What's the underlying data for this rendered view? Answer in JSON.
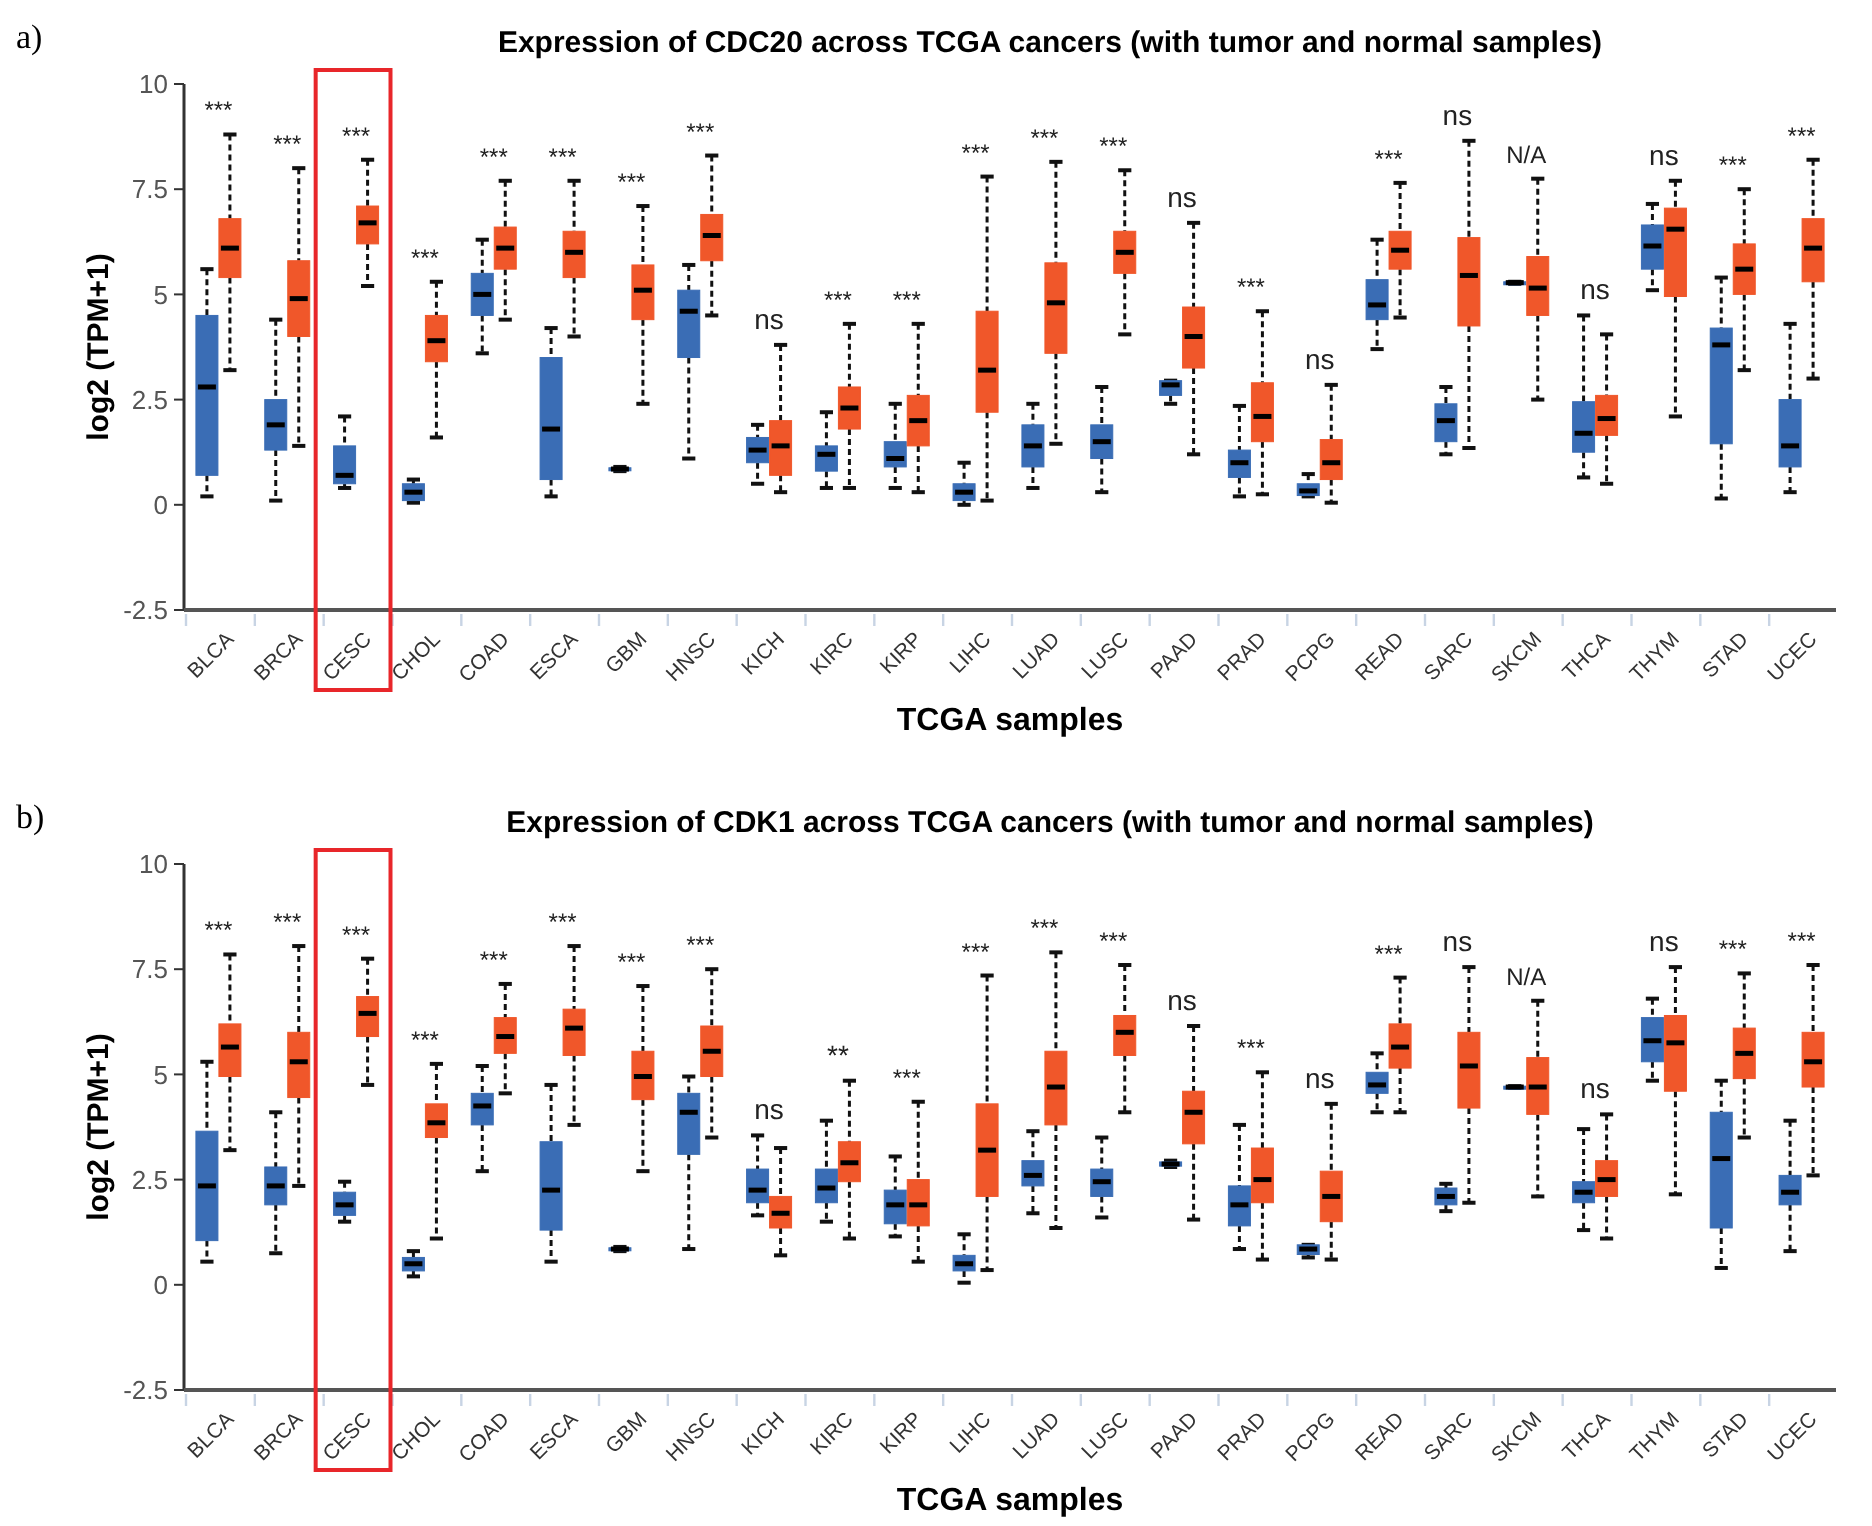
{
  "chart_data": [
    {
      "type": "box",
      "title": "Expression of CDC20 across TCGA cancers (with tumor and normal samples)",
      "xlabel": "TCGA samples",
      "ylabel": "log2 (TPM+1)",
      "ylim": [
        -2.5,
        10
      ],
      "yticks": [
        -2.5,
        0,
        2.5,
        5,
        7.5,
        10
      ],
      "categories": [
        "BLCA",
        "BRCA",
        "CESC",
        "CHOL",
        "COAD",
        "ESCA",
        "GBM",
        "HNSC",
        "KICH",
        "KIRC",
        "KIRP",
        "LIHC",
        "LUAD",
        "LUSC",
        "PAAD",
        "PRAD",
        "PCPG",
        "READ",
        "SARC",
        "SKCM",
        "THCA",
        "THYM",
        "STAD",
        "UCEC"
      ],
      "series": [
        {
          "color": "#3a6db5",
          "boxes": [
            {
              "low": 0.2,
              "q1": 0.7,
              "median": 2.8,
              "q3": 4.5,
              "high": 5.6
            },
            {
              "low": 0.1,
              "q1": 1.3,
              "median": 1.9,
              "q3": 2.5,
              "high": 4.4
            },
            {
              "low": 0.4,
              "q1": 0.5,
              "median": 0.7,
              "q3": 1.4,
              "high": 2.1
            },
            {
              "low": 0.05,
              "q1": 0.1,
              "median": 0.3,
              "q3": 0.5,
              "high": 0.6
            },
            {
              "low": 3.6,
              "q1": 4.5,
              "median": 5.0,
              "q3": 5.5,
              "high": 6.3
            },
            {
              "low": 0.2,
              "q1": 0.6,
              "median": 1.8,
              "q3": 3.5,
              "high": 4.2
            },
            {
              "low": 0.8,
              "q1": 0.82,
              "median": 0.85,
              "q3": 0.88,
              "high": 0.9
            },
            {
              "low": 1.1,
              "q1": 3.5,
              "median": 4.6,
              "q3": 5.1,
              "high": 5.7
            },
            {
              "low": 0.5,
              "q1": 1.0,
              "median": 1.3,
              "q3": 1.6,
              "high": 1.9
            },
            {
              "low": 0.4,
              "q1": 0.8,
              "median": 1.2,
              "q3": 1.4,
              "high": 2.2
            },
            {
              "low": 0.4,
              "q1": 0.9,
              "median": 1.1,
              "q3": 1.5,
              "high": 2.4
            },
            {
              "low": 0.0,
              "q1": 0.1,
              "median": 0.3,
              "q3": 0.5,
              "high": 1.0
            },
            {
              "low": 0.4,
              "q1": 0.9,
              "median": 1.4,
              "q3": 1.9,
              "high": 2.4
            },
            {
              "low": 0.3,
              "q1": 1.1,
              "median": 1.5,
              "q3": 1.9,
              "high": 2.8
            },
            {
              "low": 2.4,
              "q1": 2.6,
              "median": 2.85,
              "q3": 2.95,
              "high": 2.95
            },
            {
              "low": 0.2,
              "q1": 0.65,
              "median": 1.0,
              "q3": 1.3,
              "high": 2.35
            },
            {
              "low": 0.2,
              "q1": 0.22,
              "median": 0.33,
              "q3": 0.5,
              "high": 0.73
            },
            {
              "low": 3.7,
              "q1": 4.4,
              "median": 4.75,
              "q3": 5.35,
              "high": 6.3
            },
            {
              "low": 1.2,
              "q1": 1.5,
              "median": 2.0,
              "q3": 2.4,
              "high": 2.8
            },
            {
              "low": 5.25,
              "q1": 5.25,
              "median": 5.28,
              "q3": 5.3,
              "high": 5.3
            },
            {
              "low": 0.65,
              "q1": 1.25,
              "median": 1.7,
              "q3": 2.45,
              "high": 4.5
            },
            {
              "low": 5.1,
              "q1": 5.6,
              "median": 6.15,
              "q3": 6.65,
              "high": 7.15
            },
            {
              "low": 0.15,
              "q1": 1.45,
              "median": 3.8,
              "q3": 4.2,
              "high": 5.4
            },
            {
              "low": 0.3,
              "q1": 0.9,
              "median": 1.4,
              "q3": 2.5,
              "high": 4.3
            }
          ]
        },
        {
          "color": "#f0572a",
          "boxes": [
            {
              "low": 3.2,
              "q1": 5.4,
              "median": 6.1,
              "q3": 6.8,
              "high": 8.8
            },
            {
              "low": 1.4,
              "q1": 4.0,
              "median": 4.9,
              "q3": 5.8,
              "high": 8.0
            },
            {
              "low": 5.2,
              "q1": 6.2,
              "median": 6.7,
              "q3": 7.1,
              "high": 8.2
            },
            {
              "low": 1.6,
              "q1": 3.4,
              "median": 3.9,
              "q3": 4.5,
              "high": 5.3
            },
            {
              "low": 4.4,
              "q1": 5.6,
              "median": 6.1,
              "q3": 6.6,
              "high": 7.7
            },
            {
              "low": 4.0,
              "q1": 5.4,
              "median": 6.0,
              "q3": 6.5,
              "high": 7.7
            },
            {
              "low": 2.4,
              "q1": 4.4,
              "median": 5.1,
              "q3": 5.7,
              "high": 7.1
            },
            {
              "low": 4.5,
              "q1": 5.8,
              "median": 6.4,
              "q3": 6.9,
              "high": 8.3
            },
            {
              "low": 0.3,
              "q1": 0.7,
              "median": 1.4,
              "q3": 2.0,
              "high": 3.8
            },
            {
              "low": 0.4,
              "q1": 1.8,
              "median": 2.3,
              "q3": 2.8,
              "high": 4.3
            },
            {
              "low": 0.3,
              "q1": 1.4,
              "median": 2.0,
              "q3": 2.6,
              "high": 4.3
            },
            {
              "low": 0.1,
              "q1": 2.2,
              "median": 3.2,
              "q3": 4.6,
              "high": 7.8
            },
            {
              "low": 1.45,
              "q1": 3.6,
              "median": 4.8,
              "q3": 5.75,
              "high": 8.15
            },
            {
              "low": 4.05,
              "q1": 5.5,
              "median": 6.0,
              "q3": 6.5,
              "high": 7.95
            },
            {
              "low": 1.2,
              "q1": 3.25,
              "median": 4.0,
              "q3": 4.7,
              "high": 6.7
            },
            {
              "low": 0.25,
              "q1": 1.5,
              "median": 2.1,
              "q3": 2.9,
              "high": 4.6
            },
            {
              "low": 0.05,
              "q1": 0.6,
              "median": 1.0,
              "q3": 1.55,
              "high": 2.85
            },
            {
              "low": 4.45,
              "q1": 5.6,
              "median": 6.05,
              "q3": 6.5,
              "high": 7.65
            },
            {
              "low": 1.35,
              "q1": 4.25,
              "median": 5.45,
              "q3": 6.35,
              "high": 8.65
            },
            {
              "low": 2.5,
              "q1": 4.5,
              "median": 5.15,
              "q3": 5.9,
              "high": 7.75
            },
            {
              "low": 0.5,
              "q1": 1.65,
              "median": 2.05,
              "q3": 2.6,
              "high": 4.05
            },
            {
              "low": 2.1,
              "q1": 4.95,
              "median": 6.55,
              "q3": 7.05,
              "high": 7.7
            },
            {
              "low": 3.2,
              "q1": 5.0,
              "median": 5.6,
              "q3": 6.2,
              "high": 7.5
            },
            {
              "low": 3.0,
              "q1": 5.3,
              "median": 6.1,
              "q3": 6.8,
              "high": 8.2
            }
          ]
        }
      ],
      "annotations": [
        "a)",
        "***",
        "***",
        "***",
        "***",
        "***",
        "***",
        "***",
        "***",
        "ns",
        "***",
        "***",
        "***",
        "***",
        "***",
        "ns",
        "***",
        "ns",
        "***",
        "ns",
        "N/A",
        "ns",
        "ns",
        "***",
        "***"
      ]
    },
    {
      "type": "box",
      "title": "Expression of CDK1 across TCGA cancers (with tumor and normal samples)",
      "xlabel": "TCGA samples",
      "ylabel": "log2 (TPM+1)",
      "ylim": [
        -2.5,
        10
      ],
      "yticks": [
        -2.5,
        0,
        2.5,
        5,
        7.5,
        10
      ],
      "categories": [
        "BLCA",
        "BRCA",
        "CESC",
        "CHOL",
        "COAD",
        "ESCA",
        "GBM",
        "HNSC",
        "KICH",
        "KIRC",
        "KIRP",
        "LIHC",
        "LUAD",
        "LUSC",
        "PAAD",
        "PRAD",
        "PCPG",
        "READ",
        "SARC",
        "SKCM",
        "THCA",
        "THYM",
        "STAD",
        "UCEC"
      ],
      "series": [
        {
          "color": "#3a6db5",
          "boxes": [
            {
              "low": 0.55,
              "q1": 1.05,
              "median": 2.35,
              "q3": 3.65,
              "high": 5.3
            },
            {
              "low": 0.75,
              "q1": 1.9,
              "median": 2.35,
              "q3": 2.8,
              "high": 4.1
            },
            {
              "low": 1.5,
              "q1": 1.65,
              "median": 1.9,
              "q3": 2.2,
              "high": 2.45
            },
            {
              "low": 0.2,
              "q1": 0.33,
              "median": 0.5,
              "q3": 0.65,
              "high": 0.8
            },
            {
              "low": 2.7,
              "q1": 3.8,
              "median": 4.25,
              "q3": 4.55,
              "high": 5.2
            },
            {
              "low": 0.55,
              "q1": 1.3,
              "median": 2.25,
              "q3": 3.4,
              "high": 4.75
            },
            {
              "low": 0.8,
              "q1": 0.82,
              "median": 0.85,
              "q3": 0.88,
              "high": 0.9
            },
            {
              "low": 0.85,
              "q1": 3.1,
              "median": 4.1,
              "q3": 4.55,
              "high": 4.95
            },
            {
              "low": 1.65,
              "q1": 1.95,
              "median": 2.25,
              "q3": 2.75,
              "high": 3.55
            },
            {
              "low": 1.5,
              "q1": 1.95,
              "median": 2.3,
              "q3": 2.75,
              "high": 3.9
            },
            {
              "low": 1.15,
              "q1": 1.45,
              "median": 1.9,
              "q3": 2.25,
              "high": 3.05
            },
            {
              "low": 0.05,
              "q1": 0.33,
              "median": 0.5,
              "q3": 0.7,
              "high": 1.2
            },
            {
              "low": 1.7,
              "q1": 2.35,
              "median": 2.6,
              "q3": 2.95,
              "high": 3.65
            },
            {
              "low": 1.6,
              "q1": 2.1,
              "median": 2.45,
              "q3": 2.75,
              "high": 3.5
            },
            {
              "low": 2.8,
              "q1": 2.82,
              "median": 2.87,
              "q3": 2.92,
              "high": 2.95
            },
            {
              "low": 0.85,
              "q1": 1.4,
              "median": 1.9,
              "q3": 2.35,
              "high": 3.8
            },
            {
              "low": 0.65,
              "q1": 0.72,
              "median": 0.85,
              "q3": 0.95,
              "high": 0.95
            },
            {
              "low": 4.1,
              "q1": 4.55,
              "median": 4.75,
              "q3": 5.05,
              "high": 5.5
            },
            {
              "low": 1.75,
              "q1": 1.9,
              "median": 2.1,
              "q3": 2.3,
              "high": 2.4
            },
            {
              "low": 4.68,
              "q1": 4.68,
              "median": 4.7,
              "q3": 4.72,
              "high": 4.72
            },
            {
              "low": 1.3,
              "q1": 1.95,
              "median": 2.2,
              "q3": 2.45,
              "high": 3.7
            },
            {
              "low": 4.85,
              "q1": 5.3,
              "median": 5.8,
              "q3": 6.35,
              "high": 6.8
            },
            {
              "low": 0.4,
              "q1": 1.35,
              "median": 3.0,
              "q3": 4.1,
              "high": 4.85
            },
            {
              "low": 0.8,
              "q1": 1.9,
              "median": 2.2,
              "q3": 2.6,
              "high": 3.9
            }
          ]
        },
        {
          "color": "#f0572a",
          "boxes": [
            {
              "low": 3.2,
              "q1": 4.95,
              "median": 5.65,
              "q3": 6.2,
              "high": 7.85
            },
            {
              "low": 2.35,
              "q1": 4.45,
              "median": 5.3,
              "q3": 6.0,
              "high": 8.05
            },
            {
              "low": 4.75,
              "q1": 5.9,
              "median": 6.45,
              "q3": 6.85,
              "high": 7.75
            },
            {
              "low": 1.1,
              "q1": 3.5,
              "median": 3.85,
              "q3": 4.3,
              "high": 5.25
            },
            {
              "low": 4.55,
              "q1": 5.5,
              "median": 5.9,
              "q3": 6.35,
              "high": 7.15
            },
            {
              "low": 3.8,
              "q1": 5.45,
              "median": 6.1,
              "q3": 6.55,
              "high": 8.05
            },
            {
              "low": 2.7,
              "q1": 4.4,
              "median": 4.95,
              "q3": 5.55,
              "high": 7.1
            },
            {
              "low": 3.5,
              "q1": 4.95,
              "median": 5.55,
              "q3": 6.15,
              "high": 7.5
            },
            {
              "low": 0.7,
              "q1": 1.35,
              "median": 1.7,
              "q3": 2.1,
              "high": 3.25
            },
            {
              "low": 1.1,
              "q1": 2.45,
              "median": 2.9,
              "q3": 3.4,
              "high": 4.85
            },
            {
              "low": 0.55,
              "q1": 1.4,
              "median": 1.9,
              "q3": 2.5,
              "high": 4.35
            },
            {
              "low": 0.35,
              "q1": 2.1,
              "median": 3.2,
              "q3": 4.3,
              "high": 7.35
            },
            {
              "low": 1.35,
              "q1": 3.8,
              "median": 4.7,
              "q3": 5.55,
              "high": 7.9
            },
            {
              "low": 4.1,
              "q1": 5.45,
              "median": 6.0,
              "q3": 6.4,
              "high": 7.6
            },
            {
              "low": 1.55,
              "q1": 3.35,
              "median": 4.1,
              "q3": 4.6,
              "high": 6.15
            },
            {
              "low": 0.6,
              "q1": 1.95,
              "median": 2.5,
              "q3": 3.25,
              "high": 5.05
            },
            {
              "low": 0.6,
              "q1": 1.5,
              "median": 2.1,
              "q3": 2.7,
              "high": 4.3
            },
            {
              "low": 4.1,
              "q1": 5.15,
              "median": 5.65,
              "q3": 6.2,
              "high": 7.3
            },
            {
              "low": 1.95,
              "q1": 4.2,
              "median": 5.2,
              "q3": 6.0,
              "high": 7.55
            },
            {
              "low": 2.1,
              "q1": 4.05,
              "median": 4.7,
              "q3": 5.4,
              "high": 6.75
            },
            {
              "low": 1.1,
              "q1": 2.1,
              "median": 2.5,
              "q3": 2.95,
              "high": 4.05
            },
            {
              "low": 2.15,
              "q1": 4.6,
              "median": 5.75,
              "q3": 6.4,
              "high": 7.55
            },
            {
              "low": 3.5,
              "q1": 4.9,
              "median": 5.5,
              "q3": 6.1,
              "high": 7.4
            },
            {
              "low": 2.6,
              "q1": 4.7,
              "median": 5.3,
              "q3": 6.0,
              "high": 7.6
            }
          ]
        }
      ],
      "annotations": [
        "b)",
        "***",
        "***",
        "***",
        "***",
        "***",
        "***",
        "***",
        "***",
        "ns",
        "**",
        "***",
        "***",
        "***",
        "***",
        "ns",
        "***",
        "ns",
        "***",
        "ns",
        "N/A",
        "ns",
        "ns",
        "***",
        "***"
      ]
    }
  ]
}
